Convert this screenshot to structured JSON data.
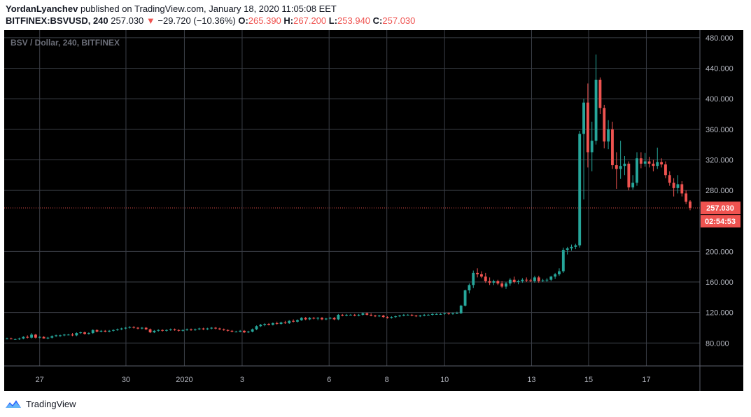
{
  "header": {
    "author": "YordanLyanchev",
    "published_text": "published on TradingView.com, January 18, 2020 11:05:08 EET",
    "symbol": "BITFINEX:BSVUSD, 240",
    "price": "257.030",
    "arrow": "▼",
    "change": "−29.720 (−10.36%)",
    "o_label": "O:",
    "o_value": "265.390",
    "h_label": "H:",
    "h_value": "267.200",
    "l_label": "L:",
    "l_value": "253.940",
    "c_label": "C:",
    "c_value": "257.030"
  },
  "footer": {
    "brand": "TradingView",
    "icon": "tradingview-cloud-icon"
  },
  "colors": {
    "up": "#26a69a",
    "down": "#ef5350",
    "background": "#000000",
    "grid": "#3b3f47",
    "axis_text": "#b2b5be",
    "price_line": "#ef5350"
  },
  "chart_data": {
    "type": "candlestick",
    "title": "BSV / Dollar, 240, BITFINEX",
    "ylim": [
      50,
      490
    ],
    "y_ticks": [
      "480.000",
      "440.000",
      "400.000",
      "360.000",
      "320.000",
      "280.000",
      "200.000",
      "160.000",
      "120.000",
      "80.000"
    ],
    "x_ticks": [
      "27",
      "30",
      "2020",
      "3",
      "6",
      "8",
      "10",
      "13",
      "15",
      "17"
    ],
    "last_price_label": "257.030",
    "countdown_label": "02:54:53",
    "last_price": 257.03,
    "candles": [
      {
        "o": 86,
        "h": 87,
        "l": 85,
        "c": 86
      },
      {
        "o": 86,
        "h": 87,
        "l": 85,
        "c": 85
      },
      {
        "o": 85,
        "h": 86,
        "l": 84,
        "c": 85
      },
      {
        "o": 85,
        "h": 87,
        "l": 84,
        "c": 86
      },
      {
        "o": 86,
        "h": 89,
        "l": 85,
        "c": 88
      },
      {
        "o": 88,
        "h": 90,
        "l": 86,
        "c": 87
      },
      {
        "o": 87,
        "h": 93,
        "l": 86,
        "c": 91
      },
      {
        "o": 91,
        "h": 92,
        "l": 86,
        "c": 87
      },
      {
        "o": 87,
        "h": 89,
        "l": 86,
        "c": 88
      },
      {
        "o": 88,
        "h": 89,
        "l": 86,
        "c": 86
      },
      {
        "o": 86,
        "h": 88,
        "l": 85,
        "c": 87
      },
      {
        "o": 87,
        "h": 90,
        "l": 86,
        "c": 89
      },
      {
        "o": 89,
        "h": 91,
        "l": 88,
        "c": 90
      },
      {
        "o": 90,
        "h": 91,
        "l": 88,
        "c": 90
      },
      {
        "o": 90,
        "h": 92,
        "l": 89,
        "c": 91
      },
      {
        "o": 91,
        "h": 92,
        "l": 90,
        "c": 91
      },
      {
        "o": 91,
        "h": 93,
        "l": 89,
        "c": 90
      },
      {
        "o": 90,
        "h": 94,
        "l": 89,
        "c": 93
      },
      {
        "o": 93,
        "h": 95,
        "l": 92,
        "c": 94
      },
      {
        "o": 94,
        "h": 95,
        "l": 91,
        "c": 92
      },
      {
        "o": 92,
        "h": 94,
        "l": 91,
        "c": 93
      },
      {
        "o": 93,
        "h": 98,
        "l": 92,
        "c": 97
      },
      {
        "o": 97,
        "h": 98,
        "l": 94,
        "c": 95
      },
      {
        "o": 95,
        "h": 97,
        "l": 94,
        "c": 96
      },
      {
        "o": 96,
        "h": 97,
        "l": 94,
        "c": 95
      },
      {
        "o": 95,
        "h": 97,
        "l": 94,
        "c": 96
      },
      {
        "o": 96,
        "h": 98,
        "l": 95,
        "c": 97
      },
      {
        "o": 97,
        "h": 99,
        "l": 96,
        "c": 98
      },
      {
        "o": 98,
        "h": 100,
        "l": 97,
        "c": 99
      },
      {
        "o": 99,
        "h": 101,
        "l": 98,
        "c": 100
      },
      {
        "o": 100,
        "h": 102,
        "l": 99,
        "c": 101
      },
      {
        "o": 101,
        "h": 102,
        "l": 99,
        "c": 100
      },
      {
        "o": 100,
        "h": 101,
        "l": 98,
        "c": 99
      },
      {
        "o": 99,
        "h": 101,
        "l": 98,
        "c": 100
      },
      {
        "o": 100,
        "h": 101,
        "l": 97,
        "c": 98
      },
      {
        "o": 98,
        "h": 99,
        "l": 93,
        "c": 94
      },
      {
        "o": 94,
        "h": 97,
        "l": 93,
        "c": 96
      },
      {
        "o": 96,
        "h": 98,
        "l": 95,
        "c": 97
      },
      {
        "o": 97,
        "h": 98,
        "l": 95,
        "c": 96
      },
      {
        "o": 96,
        "h": 98,
        "l": 95,
        "c": 97
      },
      {
        "o": 97,
        "h": 99,
        "l": 96,
        "c": 98
      },
      {
        "o": 98,
        "h": 99,
        "l": 96,
        "c": 97
      },
      {
        "o": 97,
        "h": 98,
        "l": 95,
        "c": 96
      },
      {
        "o": 96,
        "h": 98,
        "l": 95,
        "c": 97
      },
      {
        "o": 97,
        "h": 99,
        "l": 96,
        "c": 98
      },
      {
        "o": 98,
        "h": 99,
        "l": 96,
        "c": 97
      },
      {
        "o": 97,
        "h": 99,
        "l": 96,
        "c": 98
      },
      {
        "o": 98,
        "h": 100,
        "l": 97,
        "c": 99
      },
      {
        "o": 99,
        "h": 100,
        "l": 97,
        "c": 98
      },
      {
        "o": 98,
        "h": 100,
        "l": 97,
        "c": 99
      },
      {
        "o": 99,
        "h": 101,
        "l": 98,
        "c": 100
      },
      {
        "o": 100,
        "h": 101,
        "l": 98,
        "c": 99
      },
      {
        "o": 99,
        "h": 100,
        "l": 97,
        "c": 98
      },
      {
        "o": 98,
        "h": 99,
        "l": 96,
        "c": 97
      },
      {
        "o": 97,
        "h": 98,
        "l": 95,
        "c": 96
      },
      {
        "o": 96,
        "h": 97,
        "l": 94,
        "c": 95
      },
      {
        "o": 95,
        "h": 96,
        "l": 94,
        "c": 95
      },
      {
        "o": 95,
        "h": 97,
        "l": 94,
        "c": 96
      },
      {
        "o": 96,
        "h": 97,
        "l": 93,
        "c": 94
      },
      {
        "o": 94,
        "h": 96,
        "l": 93,
        "c": 95
      },
      {
        "o": 95,
        "h": 99,
        "l": 94,
        "c": 98
      },
      {
        "o": 98,
        "h": 103,
        "l": 97,
        "c": 102
      },
      {
        "o": 102,
        "h": 105,
        "l": 101,
        "c": 104
      },
      {
        "o": 104,
        "h": 106,
        "l": 102,
        "c": 105
      },
      {
        "o": 105,
        "h": 106,
        "l": 103,
        "c": 104
      },
      {
        "o": 104,
        "h": 107,
        "l": 103,
        "c": 106
      },
      {
        "o": 106,
        "h": 108,
        "l": 104,
        "c": 105
      },
      {
        "o": 105,
        "h": 108,
        "l": 104,
        "c": 107
      },
      {
        "o": 107,
        "h": 109,
        "l": 105,
        "c": 106
      },
      {
        "o": 106,
        "h": 110,
        "l": 105,
        "c": 109
      },
      {
        "o": 109,
        "h": 111,
        "l": 107,
        "c": 108
      },
      {
        "o": 108,
        "h": 111,
        "l": 107,
        "c": 110
      },
      {
        "o": 110,
        "h": 114,
        "l": 109,
        "c": 113
      },
      {
        "o": 113,
        "h": 114,
        "l": 110,
        "c": 111
      },
      {
        "o": 111,
        "h": 114,
        "l": 110,
        "c": 113
      },
      {
        "o": 113,
        "h": 114,
        "l": 111,
        "c": 112
      },
      {
        "o": 112,
        "h": 114,
        "l": 110,
        "c": 113
      },
      {
        "o": 113,
        "h": 114,
        "l": 110,
        "c": 111
      },
      {
        "o": 111,
        "h": 113,
        "l": 110,
        "c": 112
      },
      {
        "o": 112,
        "h": 114,
        "l": 111,
        "c": 113
      },
      {
        "o": 113,
        "h": 114,
        "l": 110,
        "c": 111
      },
      {
        "o": 111,
        "h": 118,
        "l": 110,
        "c": 117
      },
      {
        "o": 117,
        "h": 118,
        "l": 115,
        "c": 116
      },
      {
        "o": 116,
        "h": 118,
        "l": 115,
        "c": 117
      },
      {
        "o": 117,
        "h": 118,
        "l": 116,
        "c": 117
      },
      {
        "o": 117,
        "h": 118,
        "l": 115,
        "c": 116
      },
      {
        "o": 116,
        "h": 118,
        "l": 115,
        "c": 117
      },
      {
        "o": 117,
        "h": 120,
        "l": 116,
        "c": 119
      },
      {
        "o": 119,
        "h": 120,
        "l": 116,
        "c": 117
      },
      {
        "o": 117,
        "h": 119,
        "l": 115,
        "c": 116
      },
      {
        "o": 116,
        "h": 117,
        "l": 114,
        "c": 115
      },
      {
        "o": 115,
        "h": 117,
        "l": 114,
        "c": 116
      },
      {
        "o": 116,
        "h": 117,
        "l": 113,
        "c": 114
      },
      {
        "o": 114,
        "h": 115,
        "l": 112,
        "c": 113
      },
      {
        "o": 113,
        "h": 115,
        "l": 112,
        "c": 114
      },
      {
        "o": 114,
        "h": 116,
        "l": 113,
        "c": 115
      },
      {
        "o": 115,
        "h": 117,
        "l": 114,
        "c": 116
      },
      {
        "o": 116,
        "h": 118,
        "l": 115,
        "c": 117
      },
      {
        "o": 117,
        "h": 118,
        "l": 116,
        "c": 117
      },
      {
        "o": 117,
        "h": 118,
        "l": 115,
        "c": 116
      },
      {
        "o": 116,
        "h": 117,
        "l": 114,
        "c": 115
      },
      {
        "o": 115,
        "h": 117,
        "l": 114,
        "c": 116
      },
      {
        "o": 116,
        "h": 118,
        "l": 115,
        "c": 117
      },
      {
        "o": 117,
        "h": 118,
        "l": 116,
        "c": 117
      },
      {
        "o": 117,
        "h": 119,
        "l": 116,
        "c": 118
      },
      {
        "o": 118,
        "h": 119,
        "l": 117,
        "c": 118
      },
      {
        "o": 118,
        "h": 119,
        "l": 117,
        "c": 118
      },
      {
        "o": 118,
        "h": 120,
        "l": 117,
        "c": 119
      },
      {
        "o": 119,
        "h": 120,
        "l": 117,
        "c": 118
      },
      {
        "o": 118,
        "h": 120,
        "l": 117,
        "c": 119
      },
      {
        "o": 119,
        "h": 121,
        "l": 118,
        "c": 119
      },
      {
        "o": 119,
        "h": 130,
        "l": 118,
        "c": 129
      },
      {
        "o": 129,
        "h": 150,
        "l": 128,
        "c": 149
      },
      {
        "o": 149,
        "h": 158,
        "l": 145,
        "c": 156
      },
      {
        "o": 156,
        "h": 175,
        "l": 152,
        "c": 172
      },
      {
        "o": 172,
        "h": 178,
        "l": 166,
        "c": 170
      },
      {
        "o": 170,
        "h": 174,
        "l": 165,
        "c": 167
      },
      {
        "o": 167,
        "h": 172,
        "l": 159,
        "c": 161
      },
      {
        "o": 161,
        "h": 166,
        "l": 156,
        "c": 159
      },
      {
        "o": 159,
        "h": 163,
        "l": 156,
        "c": 161
      },
      {
        "o": 161,
        "h": 163,
        "l": 156,
        "c": 158
      },
      {
        "o": 158,
        "h": 161,
        "l": 152,
        "c": 154
      },
      {
        "o": 154,
        "h": 160,
        "l": 151,
        "c": 158
      },
      {
        "o": 158,
        "h": 165,
        "l": 155,
        "c": 163
      },
      {
        "o": 163,
        "h": 167,
        "l": 158,
        "c": 160
      },
      {
        "o": 160,
        "h": 163,
        "l": 157,
        "c": 161
      },
      {
        "o": 161,
        "h": 165,
        "l": 159,
        "c": 163
      },
      {
        "o": 163,
        "h": 166,
        "l": 160,
        "c": 162
      },
      {
        "o": 162,
        "h": 164,
        "l": 160,
        "c": 161
      },
      {
        "o": 161,
        "h": 168,
        "l": 159,
        "c": 166
      },
      {
        "o": 166,
        "h": 168,
        "l": 159,
        "c": 161
      },
      {
        "o": 161,
        "h": 164,
        "l": 160,
        "c": 162
      },
      {
        "o": 162,
        "h": 165,
        "l": 160,
        "c": 163
      },
      {
        "o": 163,
        "h": 168,
        "l": 161,
        "c": 167
      },
      {
        "o": 167,
        "h": 172,
        "l": 164,
        "c": 170
      },
      {
        "o": 170,
        "h": 178,
        "l": 168,
        "c": 174
      },
      {
        "o": 174,
        "h": 205,
        "l": 172,
        "c": 202
      },
      {
        "o": 202,
        "h": 206,
        "l": 196,
        "c": 204
      },
      {
        "o": 204,
        "h": 209,
        "l": 201,
        "c": 206
      },
      {
        "o": 206,
        "h": 210,
        "l": 203,
        "c": 208
      },
      {
        "o": 208,
        "h": 358,
        "l": 205,
        "c": 354
      },
      {
        "o": 354,
        "h": 400,
        "l": 268,
        "c": 395
      },
      {
        "o": 395,
        "h": 420,
        "l": 310,
        "c": 330
      },
      {
        "o": 330,
        "h": 370,
        "l": 305,
        "c": 345
      },
      {
        "o": 345,
        "h": 458,
        "l": 340,
        "c": 425
      },
      {
        "o": 425,
        "h": 428,
        "l": 380,
        "c": 388
      },
      {
        "o": 388,
        "h": 392,
        "l": 335,
        "c": 344
      },
      {
        "o": 344,
        "h": 372,
        "l": 334,
        "c": 360
      },
      {
        "o": 360,
        "h": 370,
        "l": 308,
        "c": 313
      },
      {
        "o": 313,
        "h": 330,
        "l": 282,
        "c": 308
      },
      {
        "o": 308,
        "h": 345,
        "l": 295,
        "c": 312
      },
      {
        "o": 312,
        "h": 325,
        "l": 300,
        "c": 315
      },
      {
        "o": 315,
        "h": 318,
        "l": 280,
        "c": 284
      },
      {
        "o": 284,
        "h": 300,
        "l": 281,
        "c": 290
      },
      {
        "o": 290,
        "h": 330,
        "l": 286,
        "c": 322
      },
      {
        "o": 322,
        "h": 330,
        "l": 309,
        "c": 315
      },
      {
        "o": 315,
        "h": 329,
        "l": 311,
        "c": 318
      },
      {
        "o": 318,
        "h": 324,
        "l": 310,
        "c": 315
      },
      {
        "o": 315,
        "h": 320,
        "l": 305,
        "c": 312
      },
      {
        "o": 312,
        "h": 336,
        "l": 308,
        "c": 317
      },
      {
        "o": 317,
        "h": 322,
        "l": 310,
        "c": 314
      },
      {
        "o": 314,
        "h": 318,
        "l": 296,
        "c": 300
      },
      {
        "o": 300,
        "h": 305,
        "l": 286,
        "c": 290
      },
      {
        "o": 290,
        "h": 296,
        "l": 272,
        "c": 283
      },
      {
        "o": 283,
        "h": 300,
        "l": 276,
        "c": 288
      },
      {
        "o": 288,
        "h": 292,
        "l": 272,
        "c": 276
      },
      {
        "o": 276,
        "h": 280,
        "l": 262,
        "c": 265
      },
      {
        "o": 265.39,
        "h": 267.2,
        "l": 253.94,
        "c": 257.03
      }
    ]
  }
}
